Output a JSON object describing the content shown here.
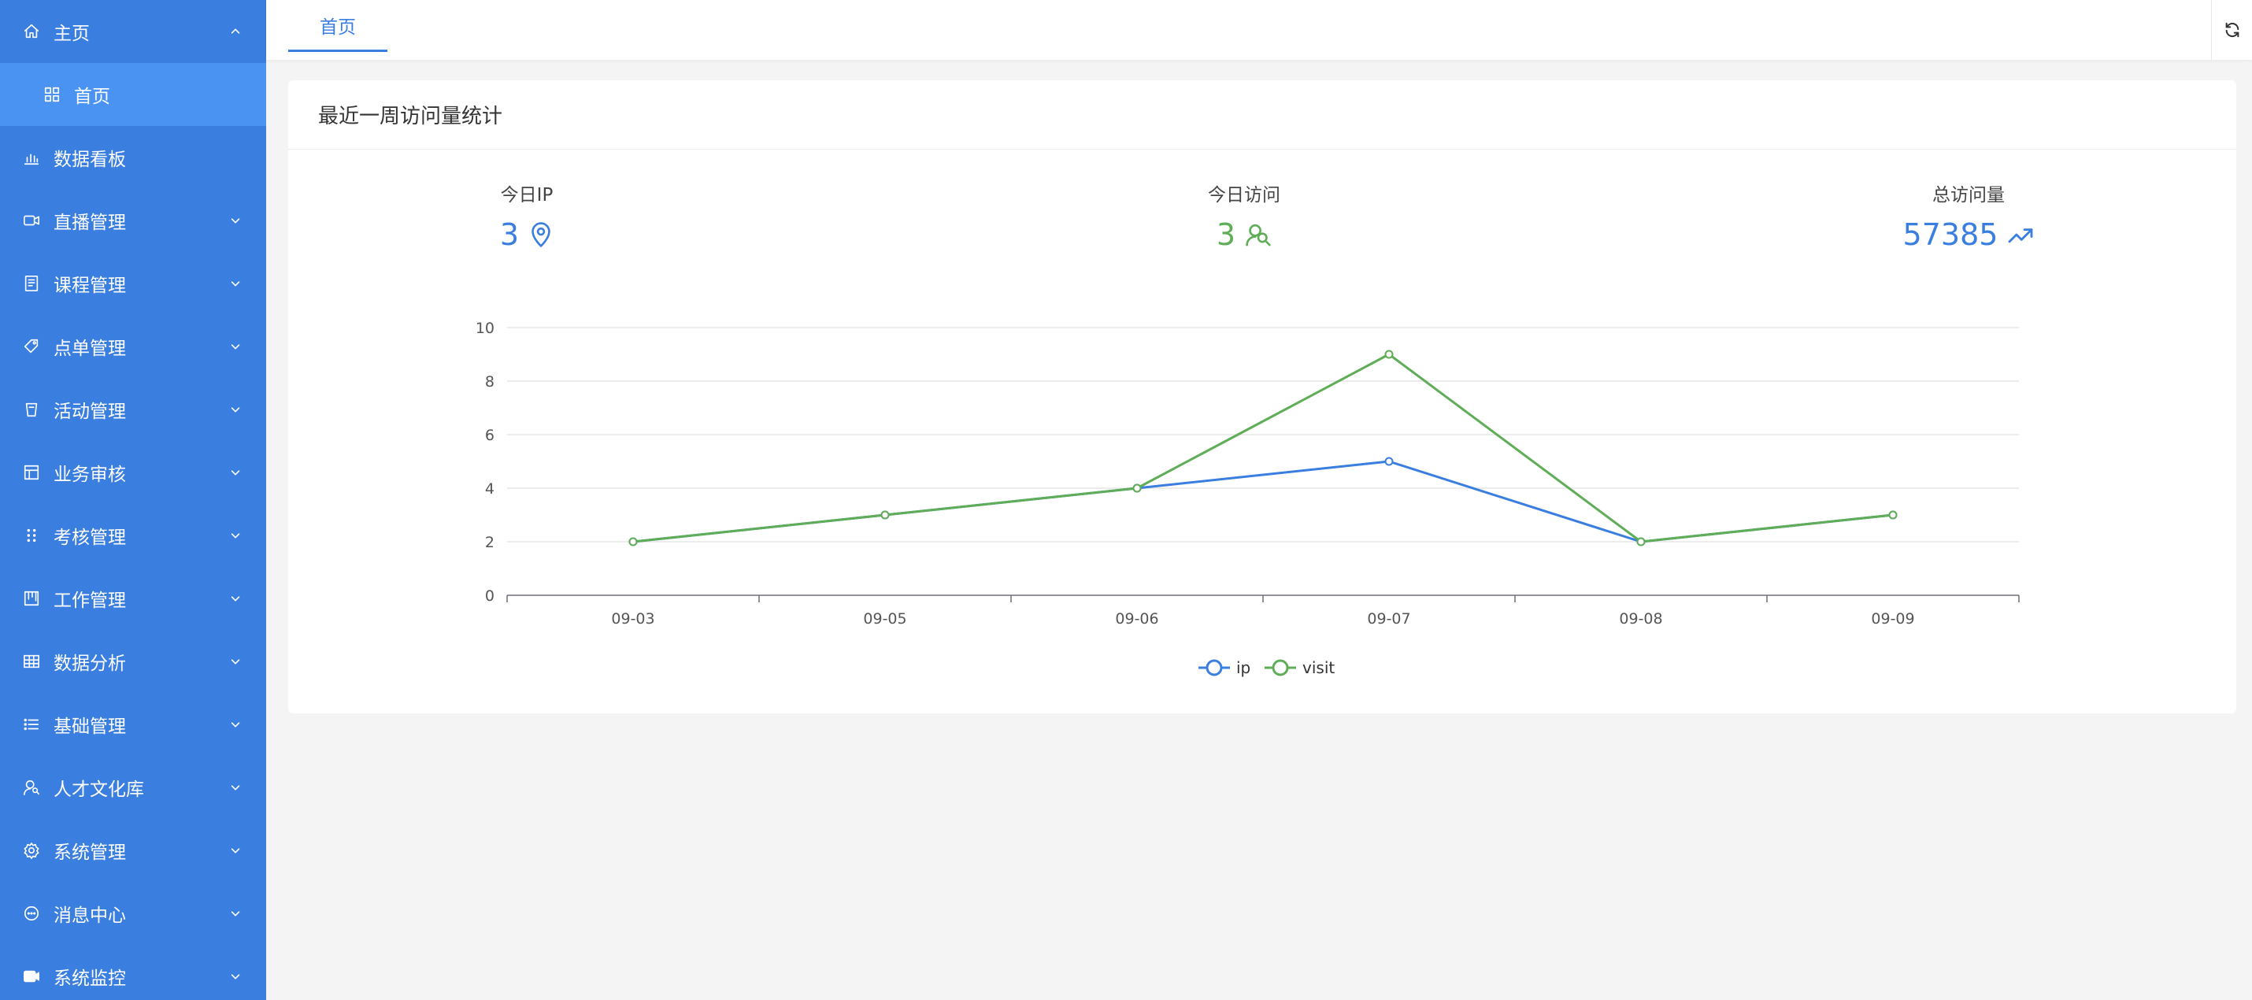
{
  "sidebar": {
    "items": [
      {
        "label": "主页",
        "icon": "home-icon",
        "arrow": "up"
      },
      {
        "label": "首页",
        "icon": "grid-icon",
        "sub": true
      },
      {
        "label": "数据看板",
        "icon": "bar-chart-icon"
      },
      {
        "label": "直播管理",
        "icon": "video-icon",
        "arrow": "down"
      },
      {
        "label": "课程管理",
        "icon": "book-icon",
        "arrow": "down"
      },
      {
        "label": "点单管理",
        "icon": "tag-icon",
        "arrow": "down"
      },
      {
        "label": "活动管理",
        "icon": "cup-icon",
        "arrow": "down"
      },
      {
        "label": "业务审核",
        "icon": "layout-icon",
        "arrow": "down"
      },
      {
        "label": "考核管理",
        "icon": "dots-icon",
        "arrow": "down"
      },
      {
        "label": "工作管理",
        "icon": "board-icon",
        "arrow": "down"
      },
      {
        "label": "数据分析",
        "icon": "table-icon",
        "arrow": "down"
      },
      {
        "label": "基础管理",
        "icon": "list-icon",
        "arrow": "down"
      },
      {
        "label": "人才文化库",
        "icon": "users-icon",
        "arrow": "down"
      },
      {
        "label": "系统管理",
        "icon": "gear-icon",
        "arrow": "down"
      },
      {
        "label": "消息中心",
        "icon": "chat-icon",
        "arrow": "down"
      },
      {
        "label": "系统监控",
        "icon": "camera-icon",
        "arrow": "down"
      }
    ]
  },
  "topbar": {
    "tab_label": "首页"
  },
  "card": {
    "title": "最近一周访问量统计",
    "stats": [
      {
        "label": "今日IP",
        "value": "3",
        "icon": "location-icon"
      },
      {
        "label": "今日访问",
        "value": "3",
        "icon": "users-icon"
      },
      {
        "label": "总访问量",
        "value": "57385",
        "icon": "trend-up-icon"
      }
    ]
  },
  "colors": {
    "sidebar_bg": "#3a7ee0",
    "sidebar_active": "#4b93f2",
    "accent_blue": "#3a7ee0",
    "accent_green": "#5fad56"
  },
  "chart_data": {
    "type": "line",
    "categories": [
      "09-03",
      "09-05",
      "09-06",
      "09-07",
      "09-08",
      "09-09"
    ],
    "series": [
      {
        "name": "ip",
        "values": [
          2,
          3,
          4,
          5,
          2,
          3
        ],
        "color": "#3a7ee0"
      },
      {
        "name": "visit",
        "values": [
          2,
          3,
          4,
          9,
          2,
          3
        ],
        "color": "#5fad56"
      }
    ],
    "yticks": [
      0,
      2,
      4,
      6,
      8,
      10
    ],
    "ylim": [
      0,
      10
    ],
    "grid": true,
    "legend": "bottom-center"
  }
}
